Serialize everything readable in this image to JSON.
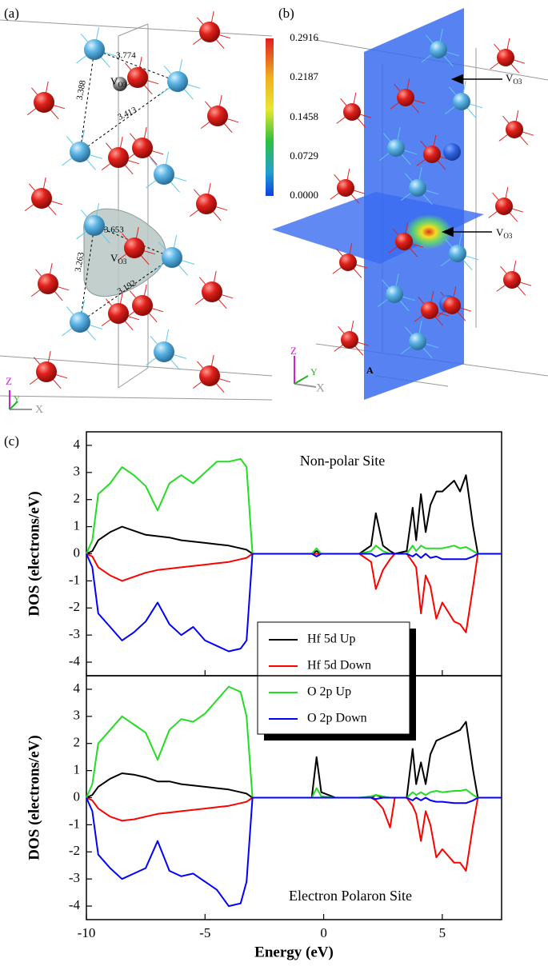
{
  "panel_a": {
    "label": "(a)",
    "distances": [
      "3.774",
      "3.388",
      "3.413",
      "3.653",
      "3.263",
      "3.192"
    ],
    "vacancies": [
      {
        "main": "V",
        "sub": "O3"
      },
      {
        "main": "V",
        "sub": "O3"
      }
    ],
    "axes": [
      "Z",
      "Y",
      "X"
    ]
  },
  "panel_b": {
    "label": "(b)",
    "colorbar_ticks": [
      "0.2916",
      "0.2187",
      "0.1458",
      "0.0729",
      "0.0000"
    ],
    "vacancies": [
      {
        "main": "V",
        "sub": "O3"
      },
      {
        "main": "V",
        "sub": "O3"
      }
    ],
    "axes": [
      "Z",
      "Y",
      "X"
    ],
    "corner": "A"
  },
  "panel_c": {
    "label": "(c)"
  },
  "chart_data": [
    {
      "type": "line",
      "annotation": "Non-polar Site",
      "ylabel": "DOS (electrons/eV)",
      "x": [
        -10,
        -9.75,
        -9.5,
        -9,
        -8.5,
        -8,
        -7.5,
        -7,
        -6.5,
        -6,
        -5.5,
        -5,
        -4.5,
        -4,
        -3.5,
        -3.25,
        -3,
        -2,
        -1,
        -0.5,
        -0.3,
        -0.1,
        0.5,
        1.5,
        2,
        2.2,
        2.5,
        2.8,
        3,
        3.5,
        3.75,
        3.9,
        4.1,
        4.3,
        4.5,
        4.75,
        5,
        5.5,
        5.75,
        6,
        6.3,
        6.5,
        7.5
      ],
      "xlim": [
        -10,
        7.5
      ],
      "xticks": [
        -10,
        -5,
        0,
        5
      ],
      "ylim": [
        -4.5,
        4.5
      ],
      "yticks": [
        -4,
        -3,
        -2,
        -1,
        0,
        1,
        2,
        3,
        4
      ],
      "series": [
        {
          "name": "Hf 5d Up",
          "color": "#000000",
          "values": [
            0,
            0.1,
            0.5,
            0.8,
            1.0,
            0.85,
            0.7,
            0.65,
            0.6,
            0.5,
            0.45,
            0.4,
            0.35,
            0.3,
            0.2,
            0.15,
            0,
            0,
            0,
            0,
            0.1,
            0,
            0,
            0,
            0.3,
            1.5,
            0.3,
            0.1,
            0,
            0.1,
            1.7,
            0.5,
            2.2,
            0.8,
            1.8,
            2.3,
            2.3,
            2.7,
            2.3,
            2.9,
            1.0,
            0,
            0
          ]
        },
        {
          "name": "Hf 5d Down",
          "color": "#ff0000",
          "values": [
            0,
            -0.1,
            -0.5,
            -0.8,
            -1.0,
            -0.85,
            -0.7,
            -0.6,
            -0.55,
            -0.5,
            -0.45,
            -0.4,
            -0.35,
            -0.3,
            -0.2,
            -0.15,
            0,
            0,
            0,
            0,
            0,
            0,
            0,
            0,
            -0.3,
            -1.3,
            -0.6,
            -0.2,
            0,
            0,
            -0.3,
            -0.5,
            -2.2,
            -0.8,
            -1.2,
            -2.4,
            -1.8,
            -2.5,
            -2.6,
            -2.9,
            -1.2,
            0,
            0
          ]
        },
        {
          "name": "O 2p Up",
          "color": "#22dd22",
          "values": [
            0,
            0.5,
            2.2,
            2.6,
            3.2,
            2.9,
            2.5,
            1.6,
            2.6,
            2.9,
            2.6,
            3.0,
            3.4,
            3.4,
            3.5,
            3.2,
            0,
            0,
            0,
            0,
            0.2,
            0,
            0,
            0,
            0.1,
            0.3,
            0.1,
            0,
            0,
            0,
            0.3,
            0.1,
            0.3,
            0.2,
            0.2,
            0.2,
            0.2,
            0.3,
            0.2,
            0.25,
            0.1,
            0,
            0
          ]
        },
        {
          "name": "O 2p  Down",
          "color": "#0000ff",
          "values": [
            0,
            -0.5,
            -2.2,
            -2.7,
            -3.2,
            -2.9,
            -2.5,
            -1.8,
            -2.6,
            -3.0,
            -2.7,
            -3.2,
            -3.4,
            -3.6,
            -3.5,
            -3.2,
            0,
            0,
            0,
            0,
            -0.1,
            0,
            0,
            0,
            0,
            -0.1,
            0,
            0,
            0,
            0,
            -0.1,
            0,
            -0.15,
            0,
            -0.15,
            -0.1,
            -0.2,
            -0.2,
            -0.2,
            -0.2,
            -0.1,
            0,
            0
          ]
        }
      ]
    },
    {
      "type": "line",
      "annotation": "Electron Polaron Site",
      "ylabel": "DOS (electrons/eV)",
      "xlabel": "Energy (eV)",
      "x": [
        -10,
        -9.75,
        -9.5,
        -9,
        -8.5,
        -8,
        -7.5,
        -7,
        -6.5,
        -6,
        -5.5,
        -5,
        -4.5,
        -4,
        -3.5,
        -3.25,
        -3,
        -2,
        -1,
        -0.5,
        -0.3,
        -0.1,
        0.5,
        1.5,
        2,
        2.2,
        2.5,
        2.8,
        3,
        3.5,
        3.75,
        3.9,
        4.1,
        4.3,
        4.5,
        4.75,
        5,
        5.5,
        5.75,
        6,
        6.3,
        6.5,
        7.5
      ],
      "xlim": [
        -10,
        7.5
      ],
      "xticks": [
        -10,
        -5,
        0,
        5
      ],
      "ylim": [
        -4.5,
        4.5
      ],
      "yticks": [
        -4,
        -3,
        -2,
        -1,
        0,
        1,
        2,
        3,
        4
      ],
      "series": [
        {
          "color": "#000000",
          "values": [
            0,
            0.1,
            0.4,
            0.7,
            0.9,
            0.85,
            0.75,
            0.6,
            0.6,
            0.5,
            0.45,
            0.4,
            0.35,
            0.3,
            0.2,
            0.15,
            0,
            0,
            0,
            0,
            1.5,
            0.2,
            0,
            0,
            0,
            0.1,
            0,
            0,
            0,
            0,
            1.8,
            0.5,
            1.3,
            0.5,
            1.6,
            2.1,
            2.2,
            2.4,
            2.5,
            2.8,
            1.0,
            0,
            0
          ]
        },
        {
          "color": "#ff0000",
          "values": [
            0,
            -0.1,
            -0.4,
            -0.7,
            -0.85,
            -0.8,
            -0.7,
            -0.6,
            -0.55,
            -0.5,
            -0.45,
            -0.4,
            -0.35,
            -0.3,
            -0.2,
            -0.15,
            0,
            0,
            0,
            0,
            0,
            0,
            0,
            0,
            0,
            -0.1,
            -0.4,
            -1.1,
            0,
            0,
            -0.3,
            -0.6,
            -1.6,
            -0.5,
            -1.0,
            -2.2,
            -1.9,
            -2.4,
            -2.4,
            -2.7,
            -1.0,
            0,
            0
          ]
        },
        {
          "color": "#22dd22",
          "values": [
            0,
            0.5,
            2.0,
            2.5,
            3.0,
            2.7,
            2.4,
            1.4,
            2.5,
            2.9,
            2.8,
            3.1,
            3.6,
            4.1,
            3.9,
            3.0,
            0,
            0,
            0,
            0,
            0.35,
            0.05,
            0,
            0,
            0.05,
            0.1,
            0.05,
            0,
            0,
            0,
            0.2,
            0.1,
            0.2,
            0.1,
            0.2,
            0.25,
            0.2,
            0.25,
            0.25,
            0.3,
            0.1,
            0,
            0
          ]
        },
        {
          "color": "#0000ff",
          "values": [
            0,
            -0.5,
            -2.1,
            -2.6,
            -3.0,
            -2.8,
            -2.6,
            -1.6,
            -2.7,
            -2.9,
            -2.8,
            -3.1,
            -3.4,
            -4.0,
            -3.9,
            -3.1,
            0,
            0,
            0,
            0,
            0,
            0,
            0,
            0,
            0,
            -0.05,
            0,
            0,
            0,
            0,
            -0.1,
            0,
            -0.1,
            0,
            -0.1,
            -0.15,
            -0.15,
            -0.2,
            -0.2,
            -0.2,
            -0.1,
            0,
            0
          ]
        }
      ]
    }
  ]
}
